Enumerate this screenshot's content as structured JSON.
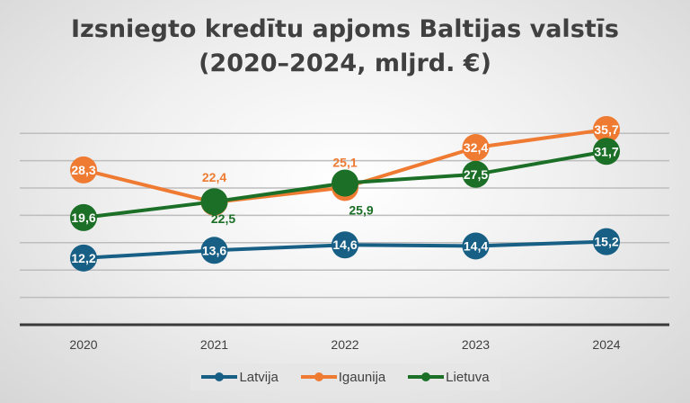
{
  "chart_data": {
    "type": "line",
    "title": "Izsniegto kredītu apjoms Baltijas valstīs (2020–2024, mljrd. €)",
    "title_lines": [
      "Izsniegto kredītu apjoms Baltijas valstīs",
      "(2020–2024, mljrd. €)"
    ],
    "categories": [
      "2020",
      "2021",
      "2022",
      "2023",
      "2024"
    ],
    "ylim": [
      0,
      40
    ],
    "grid": true,
    "legend": "bottom",
    "series": [
      {
        "name": "Latvija",
        "color": "#175f85",
        "values": [
          12.2,
          13.6,
          14.6,
          14.4,
          15.2
        ],
        "labels": [
          "12,2",
          "13,6",
          "14,6",
          "14,4",
          "15,2"
        ]
      },
      {
        "name": "Igaunija",
        "color": "#ef7b33",
        "values": [
          28.3,
          22.4,
          25.1,
          32.4,
          35.7
        ],
        "labels": [
          "28,3",
          "22,4",
          "25,1",
          "32,4",
          "35,7"
        ]
      },
      {
        "name": "Lietuva",
        "color": "#1b6f26",
        "values": [
          19.6,
          22.5,
          25.9,
          27.5,
          31.7
        ],
        "labels": [
          "19,6",
          "22,5",
          "25,9",
          "27,5",
          "31,7"
        ]
      }
    ]
  }
}
